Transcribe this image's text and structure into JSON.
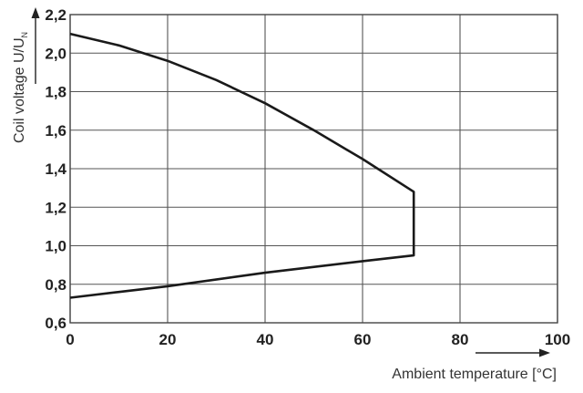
{
  "chart_data": {
    "type": "line",
    "title": "",
    "xlabel": "Ambient temperature [°C]",
    "ylabel": "Coil voltage U/U",
    "ylabel_subscript": "N",
    "xlim": [
      0,
      100
    ],
    "ylim": [
      0.6,
      2.2
    ],
    "x_ticks": [
      "0",
      "20",
      "40",
      "60",
      "80",
      "100"
    ],
    "y_ticks": [
      "0,6",
      "0,8",
      "1,0",
      "1,2",
      "1,4",
      "1,6",
      "1,8",
      "2,0",
      "2,2"
    ],
    "grid": true,
    "legend": "none",
    "series": [
      {
        "points": [
          [
            0,
            2.1
          ],
          [
            10,
            2.04
          ],
          [
            20,
            1.96
          ],
          [
            30,
            1.86
          ],
          [
            40,
            1.74
          ],
          [
            50,
            1.6
          ],
          [
            60,
            1.45
          ],
          [
            70.5,
            1.28
          ],
          [
            70.5,
            0.95
          ],
          [
            60,
            0.92
          ],
          [
            40,
            0.86
          ],
          [
            20,
            0.79
          ],
          [
            10,
            0.76
          ],
          [
            0,
            0.73
          ]
        ]
      }
    ]
  }
}
